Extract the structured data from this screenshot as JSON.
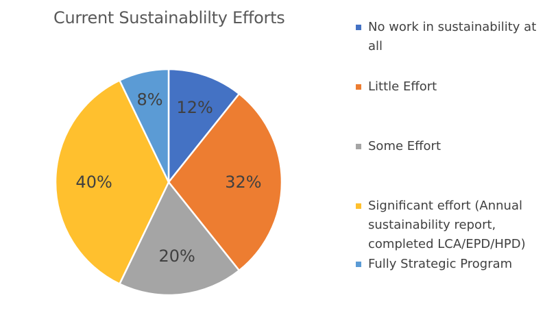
{
  "chart_data": {
    "type": "pie",
    "title": "Current Sustainablilty Efforts",
    "categories": [
      "No work in sustainability at all",
      "Little Effort",
      "Some Effort",
      "Significant effort (Annual sustainability report, completed LCA/EPD/HPD)",
      "Fully Strategic Program"
    ],
    "values": [
      12,
      32,
      20,
      40,
      8
    ],
    "data_labels": [
      "12%",
      "32%",
      "20%",
      "40%",
      "8%"
    ],
    "colors": [
      "#4472C4",
      "#ED7D31",
      "#A5A5A5",
      "#FFC02E",
      "#5B9BD5"
    ],
    "start_angle_deg": 0,
    "direction": "clockwise",
    "legend_position": "right"
  }
}
